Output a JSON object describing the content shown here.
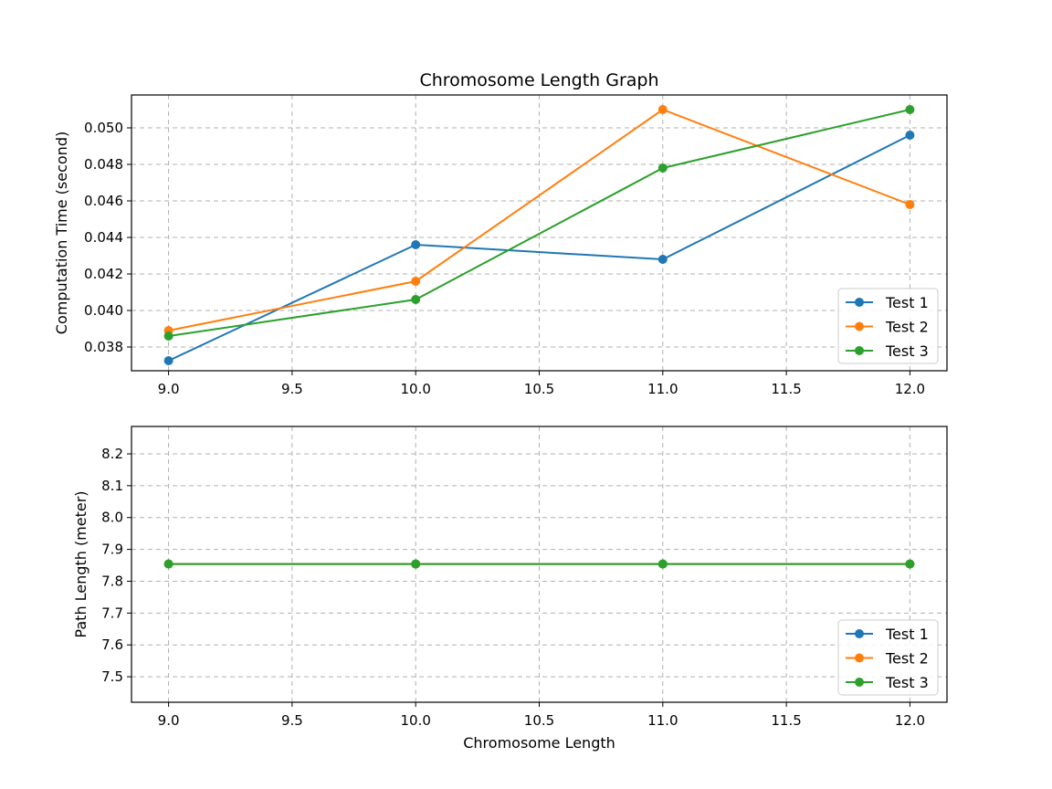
{
  "chart_data": [
    {
      "type": "line",
      "title": "Chromosome Length Graph",
      "xlabel": "",
      "ylabel": "Computation Time (second)",
      "x": [
        9.0,
        10.0,
        11.0,
        12.0
      ],
      "xlim": [
        8.85,
        12.15
      ],
      "ylim": [
        0.0367,
        0.0518
      ],
      "xticks": [
        "9.0",
        "9.5",
        "10.0",
        "10.5",
        "11.0",
        "11.5",
        "12.0"
      ],
      "yticks": [
        "0.038",
        "0.040",
        "0.042",
        "0.044",
        "0.046",
        "0.048",
        "0.050"
      ],
      "grid": true,
      "legend_position": "lower-right",
      "series": [
        {
          "name": "Test 1",
          "color": "#1f77b4",
          "values": [
            0.03725,
            0.0436,
            0.0428,
            0.0496
          ]
        },
        {
          "name": "Test 2",
          "color": "#ff7f0e",
          "values": [
            0.0389,
            0.0416,
            0.051,
            0.0458
          ]
        },
        {
          "name": "Test 3",
          "color": "#2ca02c",
          "values": [
            0.0386,
            0.0406,
            0.0478,
            0.051
          ]
        }
      ]
    },
    {
      "type": "line",
      "title": "",
      "xlabel": "Chromosome Length",
      "ylabel": "Path Length (meter)",
      "x": [
        9.0,
        10.0,
        11.0,
        12.0
      ],
      "xlim": [
        8.85,
        12.15
      ],
      "ylim": [
        7.42,
        8.286
      ],
      "xticks": [
        "9.0",
        "9.5",
        "10.0",
        "10.5",
        "11.0",
        "11.5",
        "12.0"
      ],
      "yticks": [
        "7.5",
        "7.6",
        "7.7",
        "7.8",
        "7.9",
        "8.0",
        "8.1",
        "8.2"
      ],
      "grid": true,
      "legend_position": "lower-right",
      "series": [
        {
          "name": "Test 1",
          "color": "#1f77b4",
          "values": [
            7.854,
            7.854,
            7.854,
            7.854
          ]
        },
        {
          "name": "Test 2",
          "color": "#ff7f0e",
          "values": [
            7.854,
            7.854,
            7.854,
            7.854
          ]
        },
        {
          "name": "Test 3",
          "color": "#2ca02c",
          "values": [
            7.854,
            7.854,
            7.854,
            7.854
          ]
        }
      ]
    }
  ]
}
